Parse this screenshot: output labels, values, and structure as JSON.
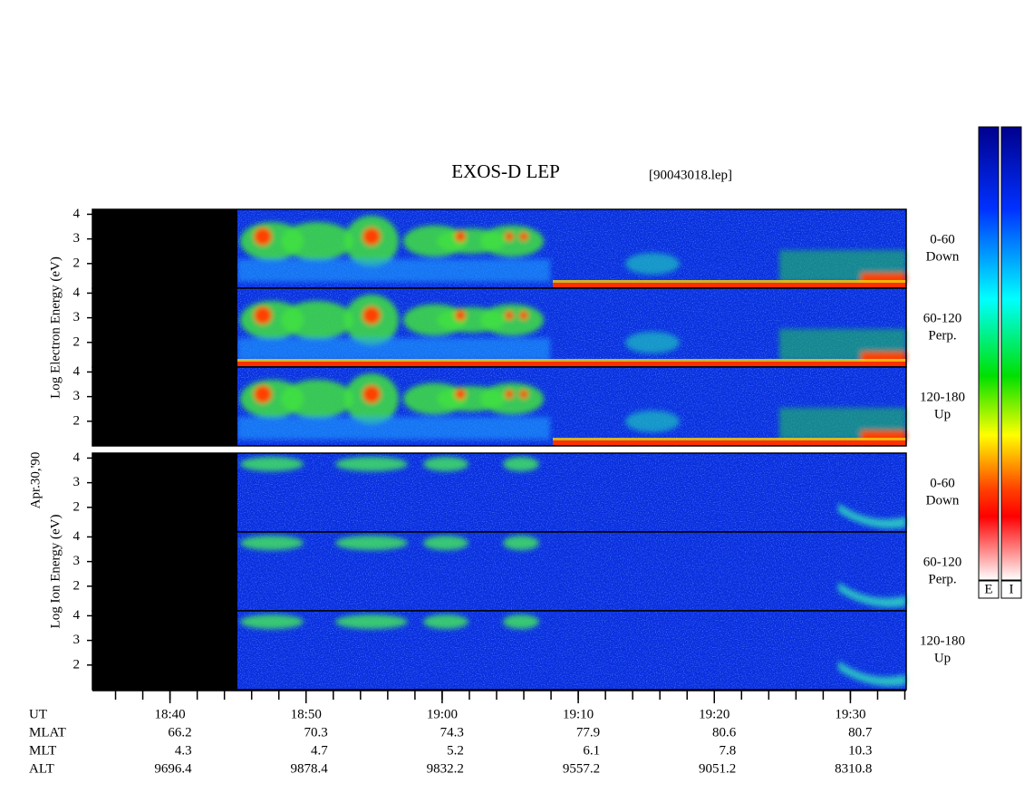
{
  "chart_data": {
    "type": "spectrogram",
    "title": "EXOS-D LEP",
    "file": "[90043018.lep]",
    "date": "Apr.30,'90",
    "xlabel": "UT",
    "xlim": [
      1114.3,
      1174.1
    ],
    "xticks": [
      {
        "value": 1120,
        "label": "18:40"
      },
      {
        "value": 1130,
        "label": "18:50"
      },
      {
        "value": 1140,
        "label": "19:00"
      },
      {
        "value": 1150,
        "label": "19:10"
      },
      {
        "value": 1160,
        "label": "19:20"
      },
      {
        "value": 1170,
        "label": "19:30"
      }
    ],
    "xminorticks": [
      1116,
      1118,
      1120,
      1122,
      1124,
      1126,
      1128,
      1130,
      1132,
      1134,
      1136,
      1138,
      1140,
      1142,
      1144,
      1146,
      1148,
      1150,
      1152,
      1154,
      1156,
      1158,
      1160,
      1162,
      1164,
      1166,
      1168,
      1170,
      1172,
      1174
    ],
    "rows": [
      {
        "label": "MLAT",
        "values": [
          66.2,
          70.3,
          74.3,
          77.9,
          80.6,
          80.7
        ]
      },
      {
        "label": "MLT",
        "values": [
          4.3,
          4.7,
          5.2,
          6.1,
          7.8,
          10.3
        ]
      },
      {
        "label": "ALT",
        "values": [
          9696.4,
          9878.4,
          9832.2,
          9557.2,
          9051.2,
          8310.8
        ]
      }
    ],
    "groups": [
      {
        "ylabel": "Log  Electron  Energy (eV)",
        "panels": [
          {
            "name": "0-60",
            "sub": "Down",
            "ylim": [
              1,
              4.2
            ],
            "yticks": [
              2,
              3,
              4
            ]
          },
          {
            "name": "60-120",
            "sub": "Perp.",
            "ylim": [
              1,
              4.2
            ],
            "yticks": [
              2,
              3,
              4
            ]
          },
          {
            "name": "120-180",
            "sub": "Up",
            "ylim": [
              1,
              4.2
            ],
            "yticks": [
              2,
              3,
              4
            ]
          }
        ]
      },
      {
        "ylabel": "Log  Ion  Energy (eV)",
        "panels": [
          {
            "name": "0-60",
            "sub": "Down",
            "ylim": [
              1,
              4.2
            ],
            "yticks": [
              2,
              3,
              4
            ]
          },
          {
            "name": "60-120",
            "sub": "Perp.",
            "ylim": [
              1,
              4.2
            ],
            "yticks": [
              2,
              3,
              4
            ]
          },
          {
            "name": "120-180",
            "sub": "Up",
            "ylim": [
              1,
              4.2
            ],
            "yticks": [
              2,
              3,
              4
            ]
          }
        ]
      }
    ],
    "colorbar_labels": [
      "E",
      "I"
    ]
  }
}
